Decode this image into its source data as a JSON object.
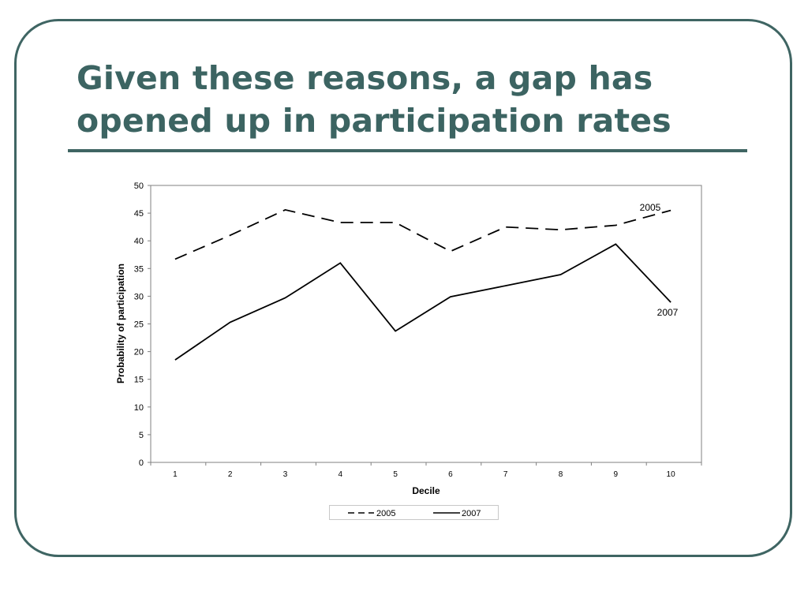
{
  "slide": {
    "title": "Given these reasons, a gap has opened up in participation rates"
  },
  "colors": {
    "frame": "#3f6563",
    "title": "#3c6462",
    "series": "#000000"
  },
  "chart_data": {
    "type": "line",
    "title": "",
    "xlabel": "Decile",
    "ylabel": "Probability of participation",
    "x": [
      1,
      2,
      3,
      4,
      5,
      6,
      7,
      8,
      9,
      10
    ],
    "ylim": [
      0,
      50
    ],
    "yticks": [
      0,
      5,
      10,
      15,
      20,
      25,
      30,
      35,
      40,
      45,
      50
    ],
    "grid": false,
    "legend_position": "bottom",
    "series": [
      {
        "name": "2005",
        "style": "dashed",
        "values": [
          36.7,
          41.0,
          45.6,
          43.3,
          43.3,
          38.1,
          42.5,
          42.0,
          42.8,
          45.5
        ]
      },
      {
        "name": "2007",
        "style": "solid",
        "values": [
          18.5,
          25.3,
          29.7,
          36.0,
          23.7,
          29.9,
          31.9,
          33.9,
          39.4,
          28.9
        ]
      }
    ],
    "annotations": [
      "2005",
      "2007"
    ]
  }
}
